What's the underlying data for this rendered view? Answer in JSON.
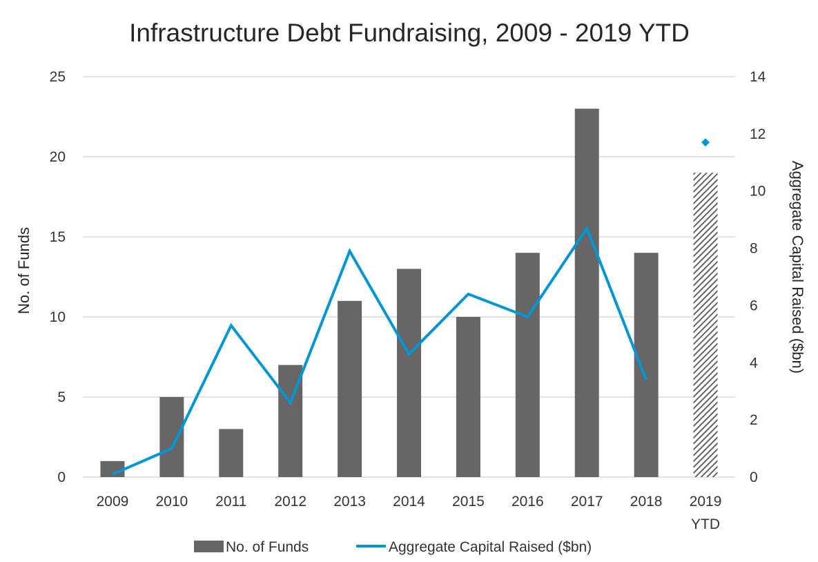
{
  "chart_data": {
    "type": "bar",
    "title": "Infrastructure Debt Fundraising, 2009 - 2019 YTD",
    "categories": [
      [
        "2009"
      ],
      [
        "2010"
      ],
      [
        "2011"
      ],
      [
        "2012"
      ],
      [
        "2013"
      ],
      [
        "2014"
      ],
      [
        "2015"
      ],
      [
        "2016"
      ],
      [
        "2017"
      ],
      [
        "2018"
      ],
      [
        "2019",
        "YTD"
      ]
    ],
    "series": [
      {
        "name": "No. of Funds",
        "type": "bar",
        "axis": "left",
        "color": "#676565",
        "values": [
          1,
          5,
          3,
          7,
          11,
          13,
          10,
          14,
          23,
          14,
          19
        ],
        "hatched_last": true
      },
      {
        "name": "Aggregate Capital Raised ($bn)",
        "type": "line",
        "axis": "right",
        "color": "#0096D6",
        "values": [
          0.1,
          1.0,
          5.3,
          2.6,
          7.9,
          4.3,
          6.4,
          5.6,
          8.7,
          3.4,
          11.7
        ],
        "ytd_marker": "diamond"
      }
    ],
    "ylabel": "No. of Funds",
    "ylabel_right": "Aggregate Capital Raised ($bn)",
    "ylim": [
      0,
      25
    ],
    "ylim_right": [
      0,
      14
    ],
    "yticks": [
      "0",
      "5",
      "10",
      "15",
      "20",
      "25"
    ],
    "yticks_right": [
      "0",
      "2",
      "4",
      "6",
      "8",
      "10",
      "12",
      "14"
    ],
    "grid": true,
    "legend": {
      "position": "bottom",
      "items": [
        "No. of Funds",
        "Aggregate Capital Raised ($bn)"
      ]
    }
  }
}
